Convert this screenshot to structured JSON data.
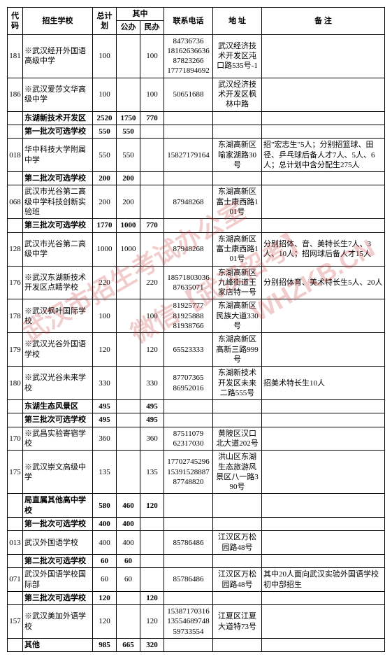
{
  "headers": {
    "code": "代码",
    "school": "招生学校",
    "total": "总计划",
    "inner": "其中",
    "pub": "公办",
    "priv": "民办",
    "phone": "联系电话",
    "addr": "地 址",
    "note": "备 注"
  },
  "watermarks": {
    "w1": "武汉市招生考试办公室",
    "w2": "微信【武汉招考】",
    "w3": "WHZKB.CN",
    "w4": "网址"
  },
  "rows": [
    {
      "code": "181",
      "school": "※武汉经开外国语高级中学",
      "total": "100",
      "pub": "",
      "priv": "100",
      "phone": "84736736\n18162636636\n87823266\n17771894692",
      "addr": "武汉经济技术开发区沌口路535号-1",
      "note": "",
      "bold": false
    },
    {
      "code": "186",
      "school": "※武汉爱莎文华高级中学",
      "total": "100",
      "pub": "",
      "priv": "100",
      "phone": "50651688",
      "addr": "武汉经济技术开发区枫林中路",
      "note": "",
      "bold": false
    },
    {
      "code": "",
      "school": "东湖新技术开发区",
      "total": "2520",
      "pub": "1750",
      "priv": "770",
      "phone": "",
      "addr": "",
      "note": "",
      "bold": true
    },
    {
      "code": "",
      "school": "第一批次可选学校",
      "total": "550",
      "pub": "550",
      "priv": "",
      "phone": "",
      "addr": "",
      "note": "",
      "bold": true
    },
    {
      "code": "018",
      "school": "华中科技大学附属中学",
      "total": "550",
      "pub": "550",
      "priv": "",
      "phone": "15827179164",
      "addr": "东湖高新区喻家湖路30号",
      "note": "招\"宏志生\"5人；分别招篮球、田径、乒乓球后备人才7人、5人、6人；总计划中含分配生275人",
      "bold": false
    },
    {
      "code": "",
      "school": "第二批次可选学校",
      "total": "200",
      "pub": "200",
      "priv": "",
      "phone": "",
      "addr": "",
      "note": "",
      "bold": true
    },
    {
      "code": "068",
      "school": "武汉市光谷第二高级中学科技创新实验班",
      "total": "200",
      "pub": "200",
      "priv": "",
      "phone": "87948268",
      "addr": "东湖高新区富士康西路101号",
      "note": "",
      "bold": false
    },
    {
      "code": "",
      "school": "第三批次可选学校",
      "total": "1770",
      "pub": "1000",
      "priv": "770",
      "phone": "",
      "addr": "",
      "note": "",
      "bold": true
    },
    {
      "code": "128",
      "school": "武汉市光谷第二高级中学",
      "total": "1000",
      "pub": "1000",
      "priv": "",
      "phone": "87948268",
      "addr": "东湖高新区富士康西路101号",
      "note": "分别招体、音、美特长生7人、3人、10人；招网球后备人才15人",
      "bold": false
    },
    {
      "code": "176",
      "school": "※武汉东湖新技术开发区点睛学校",
      "total": "220",
      "pub": "",
      "priv": "220",
      "phone": "18571803036\n87635071",
      "addr": "东湖高新区九峰街道王家店特一号",
      "note": "分别招体育、美术特长生5人、20人",
      "bold": false
    },
    {
      "code": "178",
      "school": "※武汉枫叶国际学校",
      "total": "100",
      "pub": "",
      "priv": "100",
      "phone": "81925777\n81925888\n81938766",
      "addr": "东湖高新区民族大道330号",
      "note": "",
      "bold": false
    },
    {
      "code": "179",
      "school": "※武汉光谷外国语学校",
      "total": "120",
      "pub": "",
      "priv": "120",
      "phone": "65523333",
      "addr": "东湖高新区高新三路999号",
      "note": "",
      "bold": false
    },
    {
      "code": "180",
      "school": "※武汉光谷未来学校",
      "total": "330",
      "pub": "",
      "priv": "330",
      "phone": "87707365\n86952016",
      "addr": "东湖新技术开发区未来二路555号",
      "note": "招美术特长生10人",
      "bold": false
    },
    {
      "code": "",
      "school": "东湖生态风景区",
      "total": "495",
      "pub": "",
      "priv": "495",
      "phone": "",
      "addr": "",
      "note": "",
      "bold": true
    },
    {
      "code": "",
      "school": "第三批次可选学校",
      "total": "495",
      "pub": "",
      "priv": "495",
      "phone": "",
      "addr": "",
      "note": "",
      "bold": true
    },
    {
      "code": "170",
      "school": "※武昌实验寄宿学校",
      "total": "360",
      "pub": "",
      "priv": "360",
      "phone": "87511079\n62317030",
      "addr": "黄陂区汉口北大道202号",
      "note": "",
      "bold": false
    },
    {
      "code": "175",
      "school": "※武汉崇文高级中学",
      "total": "135",
      "pub": "",
      "priv": "135",
      "phone": "17702745296\n15391528887\n87748820",
      "addr": "洪山区东湖生态旅游风景区八一路390号",
      "note": "",
      "bold": false
    },
    {
      "code": "",
      "school": "局直属其他高中学校",
      "total": "580",
      "pub": "460",
      "priv": "120",
      "phone": "",
      "addr": "",
      "note": "",
      "bold": true
    },
    {
      "code": "",
      "school": "第一批次可选学校",
      "total": "400",
      "pub": "400",
      "priv": "",
      "phone": "",
      "addr": "",
      "note": "",
      "bold": true
    },
    {
      "code": "013",
      "school": "武汉外国语学校",
      "total": "400",
      "pub": "400",
      "priv": "",
      "phone": "85786486",
      "addr": "江汉区万松园路48号",
      "note": "",
      "bold": false
    },
    {
      "code": "",
      "school": "第二批次可选学校",
      "total": "60",
      "pub": "60",
      "priv": "",
      "phone": "",
      "addr": "",
      "note": "",
      "bold": true
    },
    {
      "code": "071",
      "school": "武汉外国语学校国际部",
      "total": "60",
      "pub": "60",
      "priv": "",
      "phone": "85786486",
      "addr": "江汉区万松园路48号",
      "note": "其中20人面向武汉实验外国语学校初中部招生",
      "bold": false
    },
    {
      "code": "",
      "school": "第三批次可选学校",
      "total": "120",
      "pub": "",
      "priv": "120",
      "phone": "",
      "addr": "",
      "note": "",
      "bold": true
    },
    {
      "code": "157",
      "school": "※武汉美加外语学校",
      "total": "120",
      "pub": "",
      "priv": "120",
      "phone": "15387170316\n13554689748\n59733554",
      "addr": "江夏区江夏大道特73号",
      "note": "",
      "bold": false
    },
    {
      "code": "",
      "school": "其他",
      "total": "985",
      "pub": "665",
      "priv": "320",
      "phone": "",
      "addr": "",
      "note": "",
      "bold": true
    }
  ]
}
